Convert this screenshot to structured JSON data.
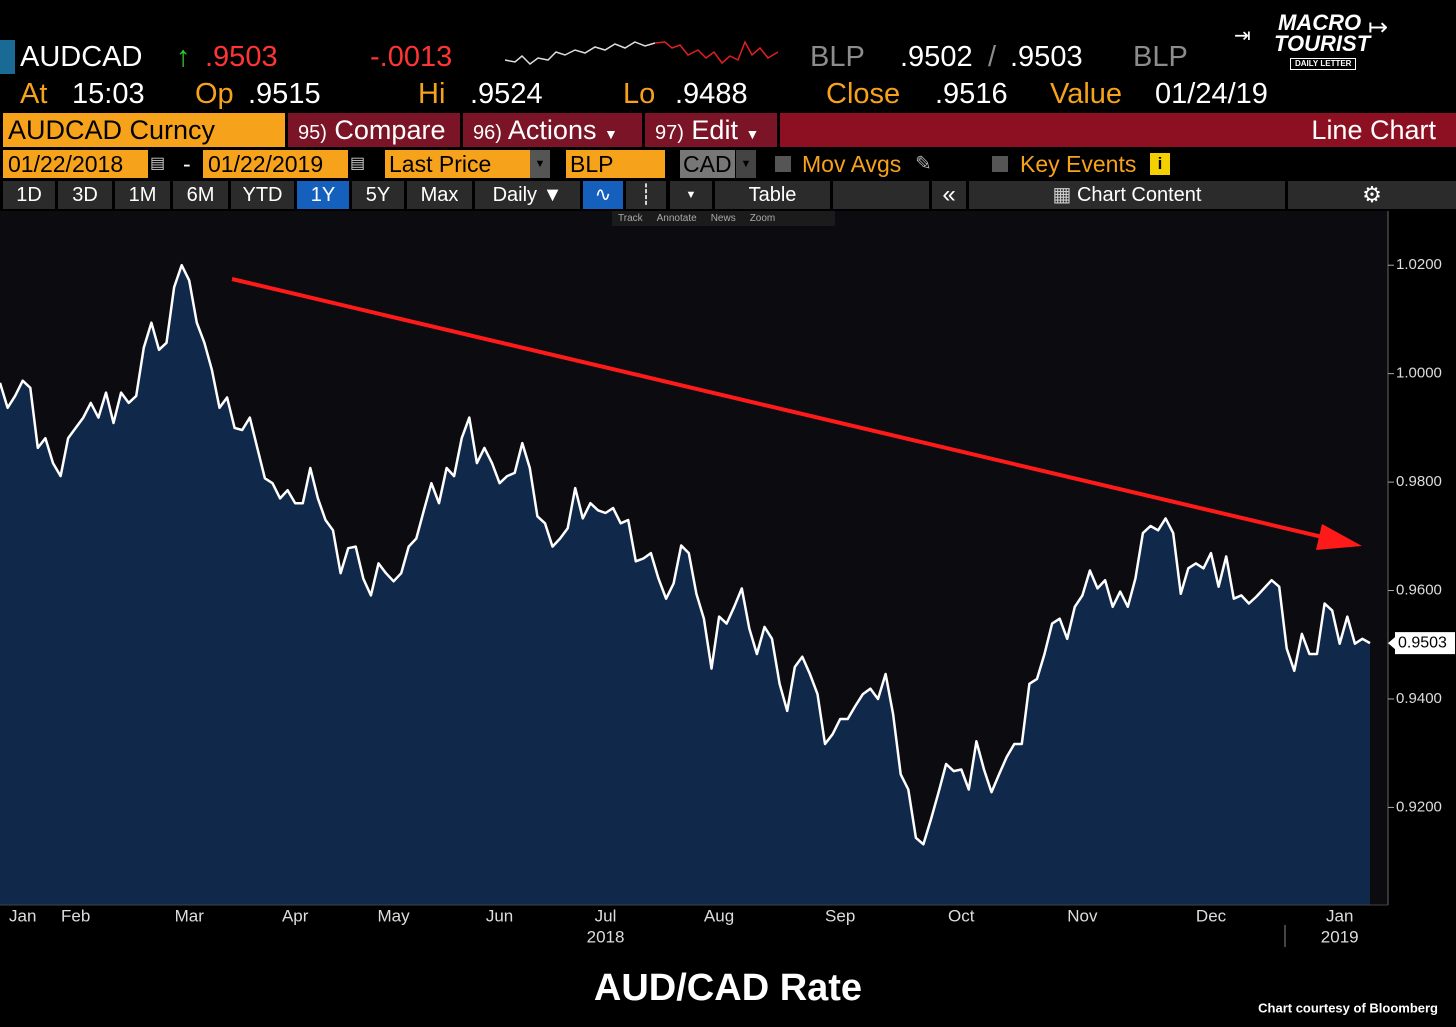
{
  "header": {
    "ticker": "AUDCAD",
    "last": ".9503",
    "change": "-.0013",
    "bid_source": "BLP",
    "bid": ".9502",
    "separator": "/",
    "ask": ".9503",
    "ask_source": "BLP",
    "at_label": "At",
    "at": "15:03",
    "open_label": "Op",
    "open": ".9515",
    "high_label": "Hi",
    "high": ".9524",
    "low_label": "Lo",
    "low": ".9488",
    "close_label": "Close",
    "close": ".9516",
    "value_label": "Value",
    "value_date": "01/24/19"
  },
  "logo": {
    "line1": "MACRO",
    "line2": "TOURIST",
    "line3": "DAILY LETTER"
  },
  "toolbar": {
    "security": "AUDCAD Curncy",
    "compare_num": "95)",
    "compare": "Compare",
    "actions_num": "96)",
    "actions": "Actions",
    "edit_num": "97)",
    "edit": "Edit",
    "chart_type": "Line Chart"
  },
  "settings": {
    "start_date": "01/22/2018",
    "dash": "-",
    "end_date": "01/22/2019",
    "field": "Last Price",
    "source": "BLP",
    "currency": "CAD",
    "mov_avgs": "Mov Avgs",
    "key_events": "Key Events"
  },
  "tabs": {
    "periods": [
      "1D",
      "3D",
      "1M",
      "6M",
      "YTD",
      "1Y",
      "5Y",
      "Max"
    ],
    "active": "1Y",
    "frequency": "Daily",
    "table": "Table",
    "chart_content": "Chart Content"
  },
  "tools": [
    "Track",
    "Annotate",
    "News",
    "Zoom"
  ],
  "chart_data": {
    "type": "area",
    "title": "AUD/CAD Rate",
    "credit": "Chart courtesy of Bloomberg",
    "color": "#ffffff",
    "fill": "#10284a",
    "ylim": [
      0.902,
      1.03
    ],
    "yticks": [
      {
        "value": 0.92,
        "label": "0.9200"
      },
      {
        "value": 0.94,
        "label": "0.9400"
      },
      {
        "value": 0.96,
        "label": "0.9600"
      },
      {
        "value": 0.98,
        "label": "0.9800"
      },
      {
        "value": 1.0,
        "label": "1.0000"
      },
      {
        "value": 1.02,
        "label": "1.0200"
      }
    ],
    "categories": [
      null,
      null,
      null,
      "Jan",
      null,
      null,
      null,
      null,
      null,
      null,
      "Feb",
      null,
      null,
      null,
      null,
      null,
      null,
      null,
      null,
      null,
      null,
      null,
      null,
      null,
      null,
      "Mar",
      null,
      null,
      null,
      null,
      null,
      null,
      null,
      null,
      null,
      null,
      null,
      null,
      null,
      "Apr",
      null,
      null,
      null,
      null,
      null,
      null,
      null,
      null,
      null,
      null,
      null,
      null,
      "May",
      null,
      null,
      null,
      null,
      null,
      null,
      null,
      null,
      null,
      null,
      null,
      null,
      null,
      "Jun",
      null,
      null,
      null,
      null,
      null,
      null,
      null,
      null,
      null,
      null,
      null,
      null,
      null,
      "Jul",
      null,
      null,
      null,
      null,
      null,
      null,
      null,
      null,
      null,
      null,
      null,
      null,
      null,
      null,
      "Aug",
      null,
      null,
      null,
      null,
      null,
      null,
      null,
      null,
      null,
      null,
      null,
      null,
      null,
      null,
      null,
      "Sep",
      null,
      null,
      null,
      null,
      null,
      null,
      null,
      null,
      null,
      null,
      null,
      null,
      null,
      null,
      null,
      "Oct",
      null,
      null,
      null,
      null,
      null,
      null,
      null,
      null,
      null,
      null,
      null,
      null,
      null,
      null,
      null,
      "Nov",
      null,
      null,
      null,
      null,
      null,
      null,
      null,
      null,
      null,
      null,
      null,
      null,
      null,
      null,
      null,
      null,
      "Dec",
      null,
      null,
      null,
      null,
      null,
      null,
      null,
      null,
      null,
      null,
      null,
      null,
      null,
      null,
      null,
      null,
      "Jan",
      null,
      null,
      null,
      null
    ],
    "x_groups": [
      {
        "label": "2018",
        "at": 80
      },
      {
        "label": "2019",
        "at": 177
      }
    ],
    "values": [
      0.9983,
      0.9937,
      0.9959,
      0.9987,
      0.9974,
      0.9863,
      0.9881,
      0.9835,
      0.9811,
      0.9881,
      0.99,
      0.9919,
      0.9946,
      0.9919,
      0.9965,
      0.9909,
      0.9965,
      0.9946,
      0.9959,
      1.0048,
      1.0094,
      1.0044,
      1.0057,
      1.0159,
      1.02,
      1.0172,
      1.0094,
      1.0057,
      1.0007,
      0.9937,
      0.9956,
      0.99,
      0.9896,
      0.9919,
      0.9863,
      0.9807,
      0.9798,
      0.977,
      0.9785,
      0.9761,
      0.9761,
      0.9826,
      0.977,
      0.973,
      0.9711,
      0.9632,
      0.9678,
      0.9681,
      0.9622,
      0.9591,
      0.965,
      0.9632,
      0.9617,
      0.9632,
      0.9681,
      0.9696,
      0.9748,
      0.9798,
      0.9761,
      0.9826,
      0.9811,
      0.9881,
      0.9919,
      0.9835,
      0.9863,
      0.9835,
      0.9798,
      0.9811,
      0.9817,
      0.9872,
      0.9826,
      0.9737,
      0.9724,
      0.9681,
      0.9696,
      0.9715,
      0.9789,
      0.9733,
      0.9761,
      0.9748,
      0.9743,
      0.9752,
      0.9724,
      0.973,
      0.9654,
      0.9659,
      0.9669,
      0.9622,
      0.9585,
      0.9613,
      0.9683,
      0.9669,
      0.9594,
      0.9548,
      0.9456,
      0.9552,
      0.9539,
      0.957,
      0.9604,
      0.953,
      0.9483,
      0.9533,
      0.9511,
      0.9428,
      0.9378,
      0.9459,
      0.9478,
      0.9446,
      0.9409,
      0.9317,
      0.9335,
      0.9363,
      0.9363,
      0.9387,
      0.9409,
      0.9419,
      0.94,
      0.9446,
      0.9372,
      0.9261,
      0.9233,
      0.9144,
      0.9132,
      0.9178,
      0.9228,
      0.928,
      0.9267,
      0.927,
      0.9233,
      0.9322,
      0.927,
      0.9228,
      0.9261,
      0.9293,
      0.9317,
      0.9317,
      0.9428,
      0.9437,
      0.9483,
      0.9539,
      0.9548,
      0.9511,
      0.957,
      0.9591,
      0.9637,
      0.9604,
      0.9619,
      0.957,
      0.9598,
      0.957,
      0.9622,
      0.9706,
      0.9719,
      0.9711,
      0.9733,
      0.9706,
      0.9594,
      0.9641,
      0.965,
      0.9641,
      0.9669,
      0.9607,
      0.9663,
      0.9585,
      0.9591,
      0.9576,
      0.9589,
      0.9604,
      0.9619,
      0.9607,
      0.9493,
      0.9452,
      0.952,
      0.9483,
      0.9483,
      0.9576,
      0.9563,
      0.9502,
      0.9552,
      0.9502,
      0.9511,
      0.9503
    ]
  }
}
